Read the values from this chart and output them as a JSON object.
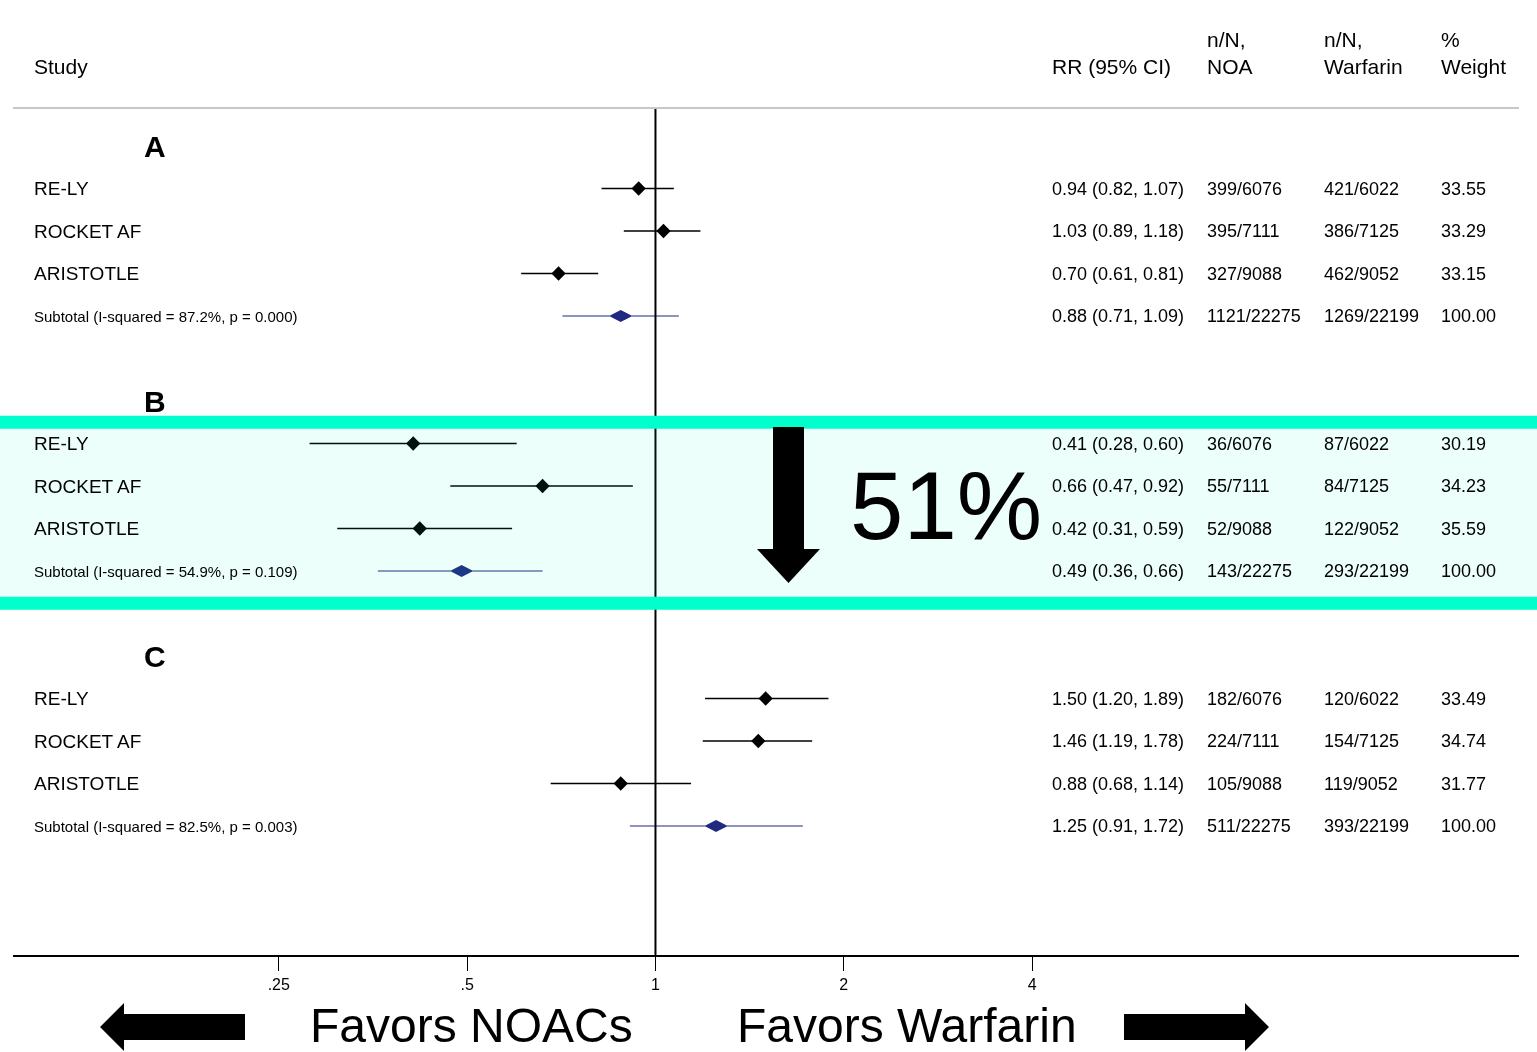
{
  "chart_data": {
    "type": "scatter",
    "orientation": "horizontal",
    "log": "x",
    "grid": false,
    "categories": [
      "A",
      "RE-LY",
      "ROCKET AF",
      "ARISTOTLE",
      "Subtotal (I-squared = 87.2%, p = 0.000)",
      null,
      "B",
      "RE-LY",
      "ROCKET AF",
      "ARISTOTLE",
      "Subtotal (I-squared = 54.9%, p = 0.109)",
      null,
      "C",
      "RE-LY",
      "ROCKET AF",
      "ARISTOTLE",
      "Subtotal (I-squared = 82.5%, p = 0.003)",
      null
    ],
    "xlim": [
      0.094,
      24
    ],
    "xticks": [
      {
        "value": 0.25,
        "label": ".25"
      },
      {
        "value": 0.5,
        "label": ".5"
      },
      1,
      2,
      4
    ],
    "series": [
      {
        "color": "#000000",
        "marker": "diamond",
        "values": [
          null,
          0.94,
          1.03,
          0.7,
          null,
          null,
          null,
          0.41,
          0.66,
          0.42,
          null,
          null,
          null,
          1.5,
          1.46,
          0.88,
          null,
          null
        ],
        "errors": [
          null,
          [
            0.82,
            1.07
          ],
          [
            0.89,
            1.18
          ],
          [
            0.61,
            0.81
          ],
          null,
          null,
          null,
          [
            0.28,
            0.6
          ],
          [
            0.47,
            0.92
          ],
          [
            0.31,
            0.59
          ],
          null,
          null,
          null,
          [
            1.2,
            1.89
          ],
          [
            1.19,
            1.78
          ],
          [
            0.68,
            1.14
          ],
          null,
          null
        ]
      },
      {
        "color": "#1f2a80",
        "marker": "diamond",
        "values": [
          null,
          null,
          null,
          null,
          0.88,
          null,
          null,
          null,
          null,
          null,
          0.49,
          null,
          null,
          null,
          null,
          null,
          1.25,
          null
        ],
        "errors": [
          null,
          null,
          null,
          null,
          [
            0.71,
            1.09
          ],
          null,
          null,
          null,
          null,
          null,
          [
            0.36,
            0.66
          ],
          null,
          null,
          null,
          null,
          null,
          [
            0.91,
            1.72
          ],
          null
        ]
      }
    ],
    "ref_lines": [
      {
        "axis": "x",
        "value": 1,
        "color": "#000000"
      }
    ],
    "bands": [
      {
        "axis": "y",
        "from": "B",
        "to": "Subtotal (I-squared = 54.9%, p = 0.109)",
        "color": "#00ffcc"
      }
    ],
    "annotations": [
      "Study",
      "RR (95% CI)",
      "n/N,\nNOA",
      "n/N,\nWarfarin",
      "%\nWeight",
      "0.94 (0.82, 1.07)",
      "399/6076",
      "421/6022",
      "33.55",
      "1.03 (0.89, 1.18)",
      "395/7111",
      "386/7125",
      "33.29",
      "0.70 (0.61, 0.81)",
      "327/9088",
      "462/9052",
      "33.15",
      "0.88 (0.71, 1.09)",
      "1121/22275",
      "1269/22199",
      "100.00",
      "0.41 (0.28, 0.60)",
      "36/6076",
      "87/6022",
      "30.19",
      "0.66 (0.47, 0.92)",
      "55/7111",
      "84/7125",
      "34.23",
      "0.42 (0.31, 0.59)",
      "52/9088",
      "122/9052",
      "35.59",
      "0.49 (0.36, 0.66)",
      "143/22275",
      "293/22199",
      "100.00",
      "1.50 (1.20, 1.89)",
      "182/6076",
      "120/6022",
      "33.49",
      "1.46 (1.19, 1.78)",
      "224/7111",
      "154/7125",
      "34.74",
      "0.88 (0.68, 1.14)",
      "105/9088",
      "119/9052",
      "31.77",
      "1.25 (0.91, 1.72)",
      "511/22275",
      "393/22199",
      "100.00",
      "51%",
      "Favors NOACs",
      "Favors Warfarin"
    ]
  }
}
